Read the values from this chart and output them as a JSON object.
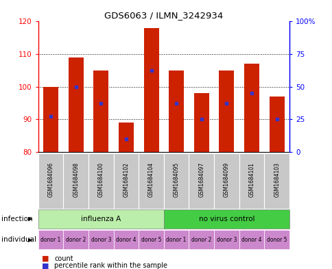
{
  "title": "GDS6063 / ILMN_3242934",
  "samples": [
    "GSM1684096",
    "GSM1684098",
    "GSM1684100",
    "GSM1684102",
    "GSM1684104",
    "GSM1684095",
    "GSM1684097",
    "GSM1684099",
    "GSM1684101",
    "GSM1684103"
  ],
  "bar_bottoms": [
    80,
    80,
    80,
    80,
    80,
    80,
    80,
    80,
    80,
    80
  ],
  "bar_tops": [
    100,
    109,
    105,
    89,
    118,
    105,
    98,
    105,
    107,
    97
  ],
  "percentile_values": [
    91,
    100,
    95,
    84,
    105,
    95,
    90,
    95,
    98,
    90
  ],
  "ylim": [
    80,
    120
  ],
  "yticks": [
    80,
    90,
    100,
    110,
    120
  ],
  "right_yticks_pct": [
    0,
    25,
    50,
    75,
    100
  ],
  "bar_color": "#cc2200",
  "percentile_color": "#3333cc",
  "influenza_color": "#bbeeaa",
  "novirus_color": "#44cc44",
  "donor_color": "#cc88cc",
  "sample_bg_color": "#c8c8c8",
  "infection_groups": [
    {
      "label": "influenza A",
      "start": 0,
      "end": 5
    },
    {
      "label": "no virus control",
      "start": 5,
      "end": 10
    }
  ],
  "donor_labels": [
    "donor 1",
    "donor 2",
    "donor 3",
    "donor 4",
    "donor 5",
    "donor 1",
    "donor 2",
    "donor 3",
    "donor 4",
    "donor 5"
  ]
}
